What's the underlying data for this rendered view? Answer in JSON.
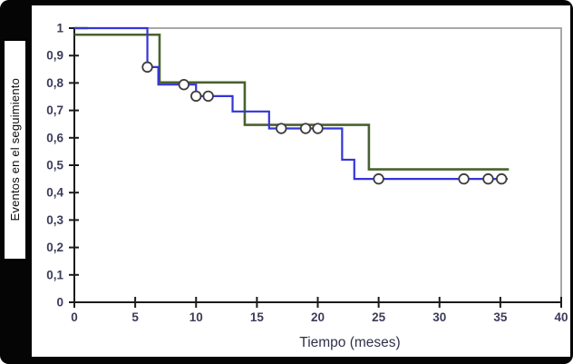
{
  "figure": {
    "sidebar_label": "Eventos en el seguimiento",
    "xaxis_label": "Tiempo (meses)"
  },
  "colors": {
    "background": "#ffffff",
    "frame_border": "#050505",
    "plot_frame_gray": "#a8a8a8",
    "axis": "#1b1b1b",
    "tick_label": "#3c3c5a",
    "blue_curve": "#3434d8",
    "green_curve": "#49622f",
    "green_bright_segment": "#35a235",
    "censor_marker_stroke": "#3d3d3d",
    "censor_marker_fill": "#ffffff"
  },
  "chart_data": {
    "type": "line",
    "subtype": "kaplan-meier-step",
    "title": "",
    "xlabel": "Tiempo (meses)",
    "ylabel": "Eventos en el seguimiento",
    "xlim": [
      0,
      40
    ],
    "ylim": [
      0,
      1
    ],
    "grid": false,
    "legend": false,
    "x_tick_values": [
      0,
      5,
      10,
      15,
      20,
      25,
      30,
      35,
      40
    ],
    "x_tick_labels": [
      "0",
      "5",
      "10",
      "15",
      "20",
      "25",
      "30",
      "35",
      "40"
    ],
    "y_tick_values": [
      0,
      0.1,
      0.2,
      0.3,
      0.4,
      0.5,
      0.6,
      0.7,
      0.8,
      0.9,
      1
    ],
    "y_tick_labels": [
      "0",
      "0,1",
      "0,2",
      "0,3",
      "0,4",
      "0,5",
      "0,6",
      "0,7",
      "0,8",
      "0,9",
      "1"
    ],
    "series": [
      {
        "name": "green-group-initial-segment",
        "color": "#35a235",
        "width": 2.4,
        "points": [
          [
            0,
            1.0
          ],
          [
            1.1,
            1.0
          ]
        ],
        "censored": []
      },
      {
        "name": "green-group",
        "color": "#49622f",
        "width": 2.6,
        "points": [
          [
            0,
            0.976
          ],
          [
            7,
            0.976
          ],
          [
            7,
            0.802
          ],
          [
            14,
            0.802
          ],
          [
            14,
            0.647
          ],
          [
            24.2,
            0.647
          ],
          [
            24.2,
            0.485
          ],
          [
            35.7,
            0.485
          ]
        ],
        "censored": []
      },
      {
        "name": "blue-group",
        "color": "#3434d8",
        "width": 2.2,
        "points": [
          [
            0,
            1.0
          ],
          [
            6,
            1.0
          ],
          [
            6,
            0.858
          ],
          [
            6.9,
            0.858
          ],
          [
            6.9,
            0.794
          ],
          [
            10,
            0.794
          ],
          [
            10,
            0.752
          ],
          [
            13,
            0.752
          ],
          [
            13,
            0.696
          ],
          [
            16,
            0.696
          ],
          [
            16,
            0.634
          ],
          [
            22,
            0.634
          ],
          [
            22,
            0.52
          ],
          [
            23,
            0.52
          ],
          [
            23,
            0.45
          ],
          [
            35.6,
            0.45
          ]
        ],
        "censored": [
          [
            6,
            0.858
          ],
          [
            9,
            0.794
          ],
          [
            10,
            0.752
          ],
          [
            11,
            0.752
          ],
          [
            17,
            0.634
          ],
          [
            19,
            0.634
          ],
          [
            20,
            0.634
          ],
          [
            25,
            0.45
          ],
          [
            32,
            0.45
          ],
          [
            34,
            0.45
          ],
          [
            35.1,
            0.45
          ]
        ]
      }
    ]
  }
}
